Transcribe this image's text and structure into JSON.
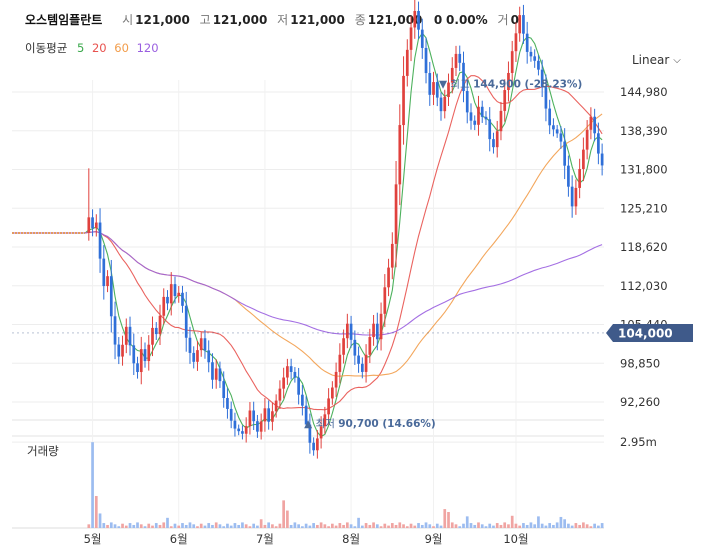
{
  "header": {
    "stock_name": "오스템임플란트",
    "open_label": "시",
    "open_value": "121,000",
    "high_label": "고",
    "high_value": "121,000",
    "low_label": "저",
    "low_value": "121,000",
    "close_label": "종",
    "close_value": "121,000",
    "change_value": "0",
    "change_pct": "0.00%",
    "volume_label": "거",
    "volume_value": "0"
  },
  "ma_legend": {
    "title": "이동평균",
    "periods": [
      {
        "label": "5",
        "color": "#3aa84b"
      },
      {
        "label": "20",
        "color": "#e8524e"
      },
      {
        "label": "60",
        "color": "#f29d4b"
      },
      {
        "label": "120",
        "color": "#9a5fe0"
      }
    ]
  },
  "scale_button": {
    "label": "Linear",
    "icon": "chevron-down-icon"
  },
  "volume_label": "거래량",
  "colors": {
    "up": "#e0413d",
    "down": "#2f6fd8",
    "accent_tag": "#3f5a8a"
  },
  "chart_data": {
    "type": "candlestick",
    "price_axis": {
      "ticks": [
        144980,
        138390,
        131800,
        125210,
        118620,
        112030,
        105440,
        98850,
        92260
      ],
      "tick_labels": [
        "144,980",
        "138,390",
        "131,800",
        "125,210",
        "118,620",
        "112,030",
        "105,440",
        "98,850",
        "92,260"
      ]
    },
    "volume_axis": {
      "tick_labels": [
        "2.95m"
      ],
      "ticks": [
        2950000
      ],
      "max": 3300000
    },
    "x_axis": {
      "month_labels": [
        "5월",
        "6월",
        "7월",
        "8월",
        "9월",
        "10월"
      ],
      "month_start_index": [
        21,
        44,
        67,
        90,
        112,
        134
      ]
    },
    "current_price": {
      "value": 104000,
      "label": "104,000"
    },
    "high_annotation": {
      "label": "최고",
      "value": "144,900",
      "pct": "(-28.23%)",
      "index": 114,
      "price": 144900
    },
    "low_annotation": {
      "label": "최저",
      "value": "90,700",
      "pct": "(14.66%)",
      "index": 78,
      "price": 90700
    },
    "flat_period": {
      "price": 121000,
      "days": 20
    },
    "moves": [
      2.2,
      -1.5,
      0.8,
      -5,
      -4,
      1.5,
      -6,
      -4.5,
      -2,
      2,
      3,
      -3,
      -3,
      -1.5,
      4,
      -2,
      2.8,
      2.8,
      -1,
      3,
      3,
      -1,
      3,
      -1.8,
      0.5,
      -2,
      -5,
      -2.5,
      -1.5,
      2,
      2,
      -2,
      -2,
      -3,
      2,
      -2.2,
      -3,
      -2,
      -2.2,
      -1.5,
      -0.5,
      -0.5,
      1.5,
      3,
      -2,
      -2,
      2,
      2.5,
      -2.5,
      2,
      2,
      2.2,
      2,
      2,
      -1,
      -1,
      -3,
      -2,
      -3.5,
      -3.5,
      -1.5,
      2.4,
      2.4,
      2.3,
      3,
      2,
      2.8,
      3,
      2.8,
      2.4,
      -2.6,
      -2.6,
      -1.4,
      -1.4,
      3,
      3,
      2.2,
      -2.5,
      4.2,
      4.2,
      3,
      3.5,
      8.5,
      7.8,
      6,
      3,
      2.5,
      1.8,
      -2,
      -2,
      -2.8,
      -2.5,
      1.5,
      -1.8,
      -1.6,
      1.7,
      1.7,
      1.7,
      1.6,
      -1,
      -3.2,
      -2.5,
      -1,
      -0.5,
      2.2,
      -1.2,
      -0.3,
      -2.4,
      -1,
      2,
      2.5,
      2.5,
      2,
      2.5,
      2,
      2,
      -2,
      -2,
      -0.5,
      -0.5,
      -1,
      -2,
      -2.5,
      -2,
      -0.5,
      -0.5,
      -1,
      -3,
      -2.7,
      -2.6,
      2.5,
      2.5,
      2.5,
      2.5,
      1.6,
      -2,
      -2.5,
      -1.5
    ],
    "volume_spikes": {
      "21": 2950000,
      "22": 1100000,
      "23": 500000,
      "41": 350000,
      "66": 300000,
      "72": 950000,
      "73": 600000,
      "92": 350000,
      "115": 650000,
      "116": 550000,
      "121": 400000,
      "133": 420000,
      "140": 400000,
      "146": 380000,
      "147": 300000
    }
  }
}
